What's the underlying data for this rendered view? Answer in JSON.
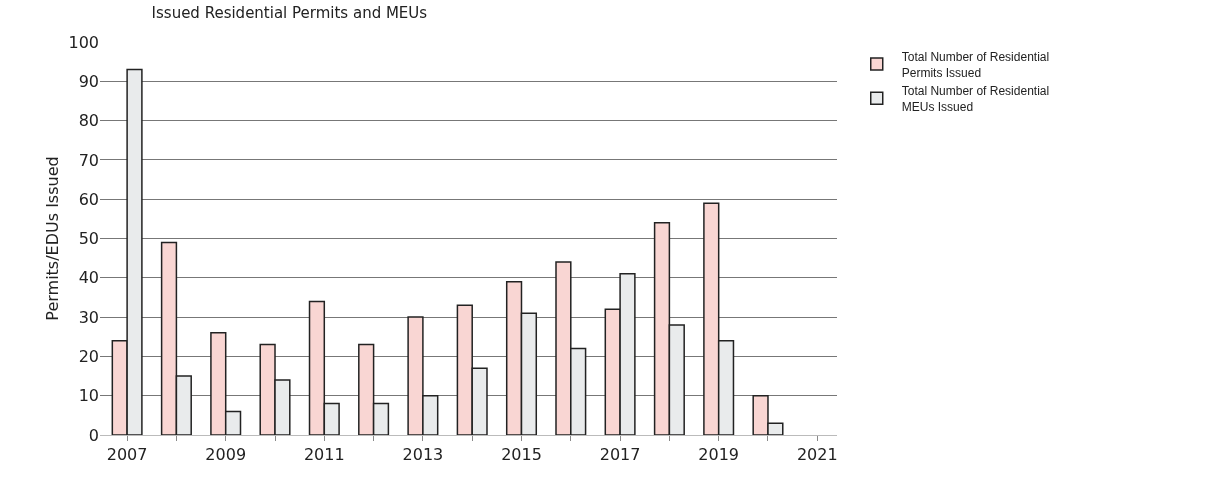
{
  "chart_data": {
    "type": "bar",
    "title": "Issued Residential Permits and MEUs",
    "ylabel": "Permits/EDUs Issued",
    "x": [
      2007,
      2008,
      2009,
      2010,
      2011,
      2012,
      2013,
      2014,
      2015,
      2016,
      2017,
      2018,
      2019,
      2020
    ],
    "series": [
      {
        "name": "Total Number of Residential Permits Issued",
        "color": "#f9d6d3",
        "values": [
          24,
          49,
          26,
          23,
          34,
          23,
          30,
          33,
          39,
          44,
          32,
          54,
          59,
          10
        ]
      },
      {
        "name": "Total Number of Residential MEUs Issued",
        "color": "#e9ebec",
        "values": [
          93,
          15,
          6,
          14,
          8,
          8,
          10,
          17,
          31,
          22,
          41,
          28,
          24,
          3
        ]
      }
    ],
    "xlim": [
      2006.45,
      2021.4
    ],
    "xticks": [
      2007,
      {
        "value": 2008,
        "label": null
      },
      2009,
      {
        "value": 2010,
        "label": null
      },
      2011,
      {
        "value": 2012,
        "label": null
      },
      2013,
      {
        "value": 2014,
        "label": null
      },
      2015,
      {
        "value": 2016,
        "label": null
      },
      2017,
      {
        "value": 2018,
        "label": null
      },
      2019,
      {
        "value": 2020,
        "label": null
      },
      2021
    ],
    "ylim": [
      0,
      100
    ],
    "yticks": [
      0,
      10,
      20,
      30,
      40,
      50,
      60,
      70,
      80,
      90,
      100
    ],
    "grid": "y",
    "legend": "right"
  }
}
